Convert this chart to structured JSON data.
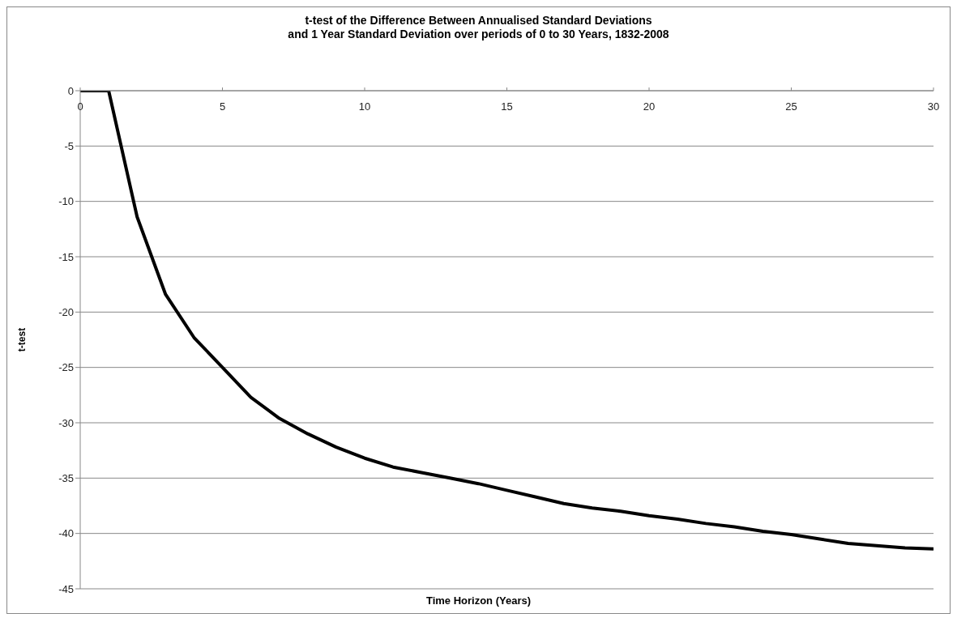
{
  "chart_data": {
    "type": "line",
    "title": "t-test of the Difference Between Annualised Standard Deviations\nand 1 Year Standard Deviation over periods of 0 to 30 Years, 1832-2008",
    "xlabel": "Time Horizon (Years)",
    "ylabel": "t-test",
    "x": [
      0,
      1,
      2,
      3,
      4,
      5,
      6,
      7,
      8,
      9,
      10,
      11,
      12,
      13,
      14,
      15,
      16,
      17,
      18,
      19,
      20,
      21,
      22,
      23,
      24,
      25,
      26,
      27,
      28,
      29,
      30
    ],
    "series": [
      {
        "color": "#000000",
        "values": [
          0,
          0,
          -11.4,
          -18.4,
          -22.3,
          -25.0,
          -27.7,
          -29.6,
          -31.0,
          -32.2,
          -33.2,
          -34.0,
          -34.5,
          -35.0,
          -35.5,
          -36.1,
          -36.7,
          -37.3,
          -37.7,
          -38.0,
          -38.4,
          -38.7,
          -39.1,
          -39.4,
          -39.8,
          -40.1,
          -40.5,
          -40.9,
          -41.1,
          -41.3,
          -41.4
        ]
      }
    ],
    "xlim": [
      0,
      30
    ],
    "xticks": [
      0,
      5,
      10,
      15,
      20,
      25,
      30
    ],
    "ylim": [
      -45,
      0
    ],
    "yticks": [
      0,
      -5,
      -10,
      -15,
      -20,
      -25,
      -30,
      -35,
      -40,
      -45
    ],
    "grid": "y",
    "legend": false,
    "marker": "none",
    "line_style": "solid"
  }
}
